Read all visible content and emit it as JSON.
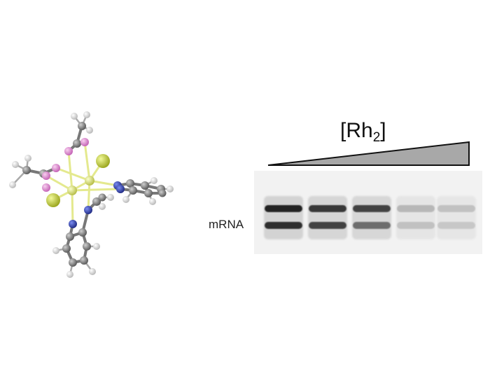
{
  "gel": {
    "concentration_label": "[Rh",
    "concentration_subscript": "2",
    "concentration_suffix": "]",
    "band_label": "mRNA",
    "lane_count": 5,
    "band_intensity_upper": [
      0.95,
      0.85,
      0.8,
      0.25,
      0.2
    ],
    "band_intensity_lower": [
      0.9,
      0.8,
      0.6,
      0.2,
      0.17
    ]
  },
  "colors": {
    "triangle": "#a8a8a8",
    "carbon": "#7a7a7a",
    "hydrogen": "#e6e6e6",
    "oxygen": "#e48fd6",
    "nitrogen": "#2f3fb8",
    "rhodium": "#d9e07a",
    "chlorine": "#c9d630"
  },
  "molecule": {
    "icon": "rh2-complex-ball-and-stick-model"
  }
}
